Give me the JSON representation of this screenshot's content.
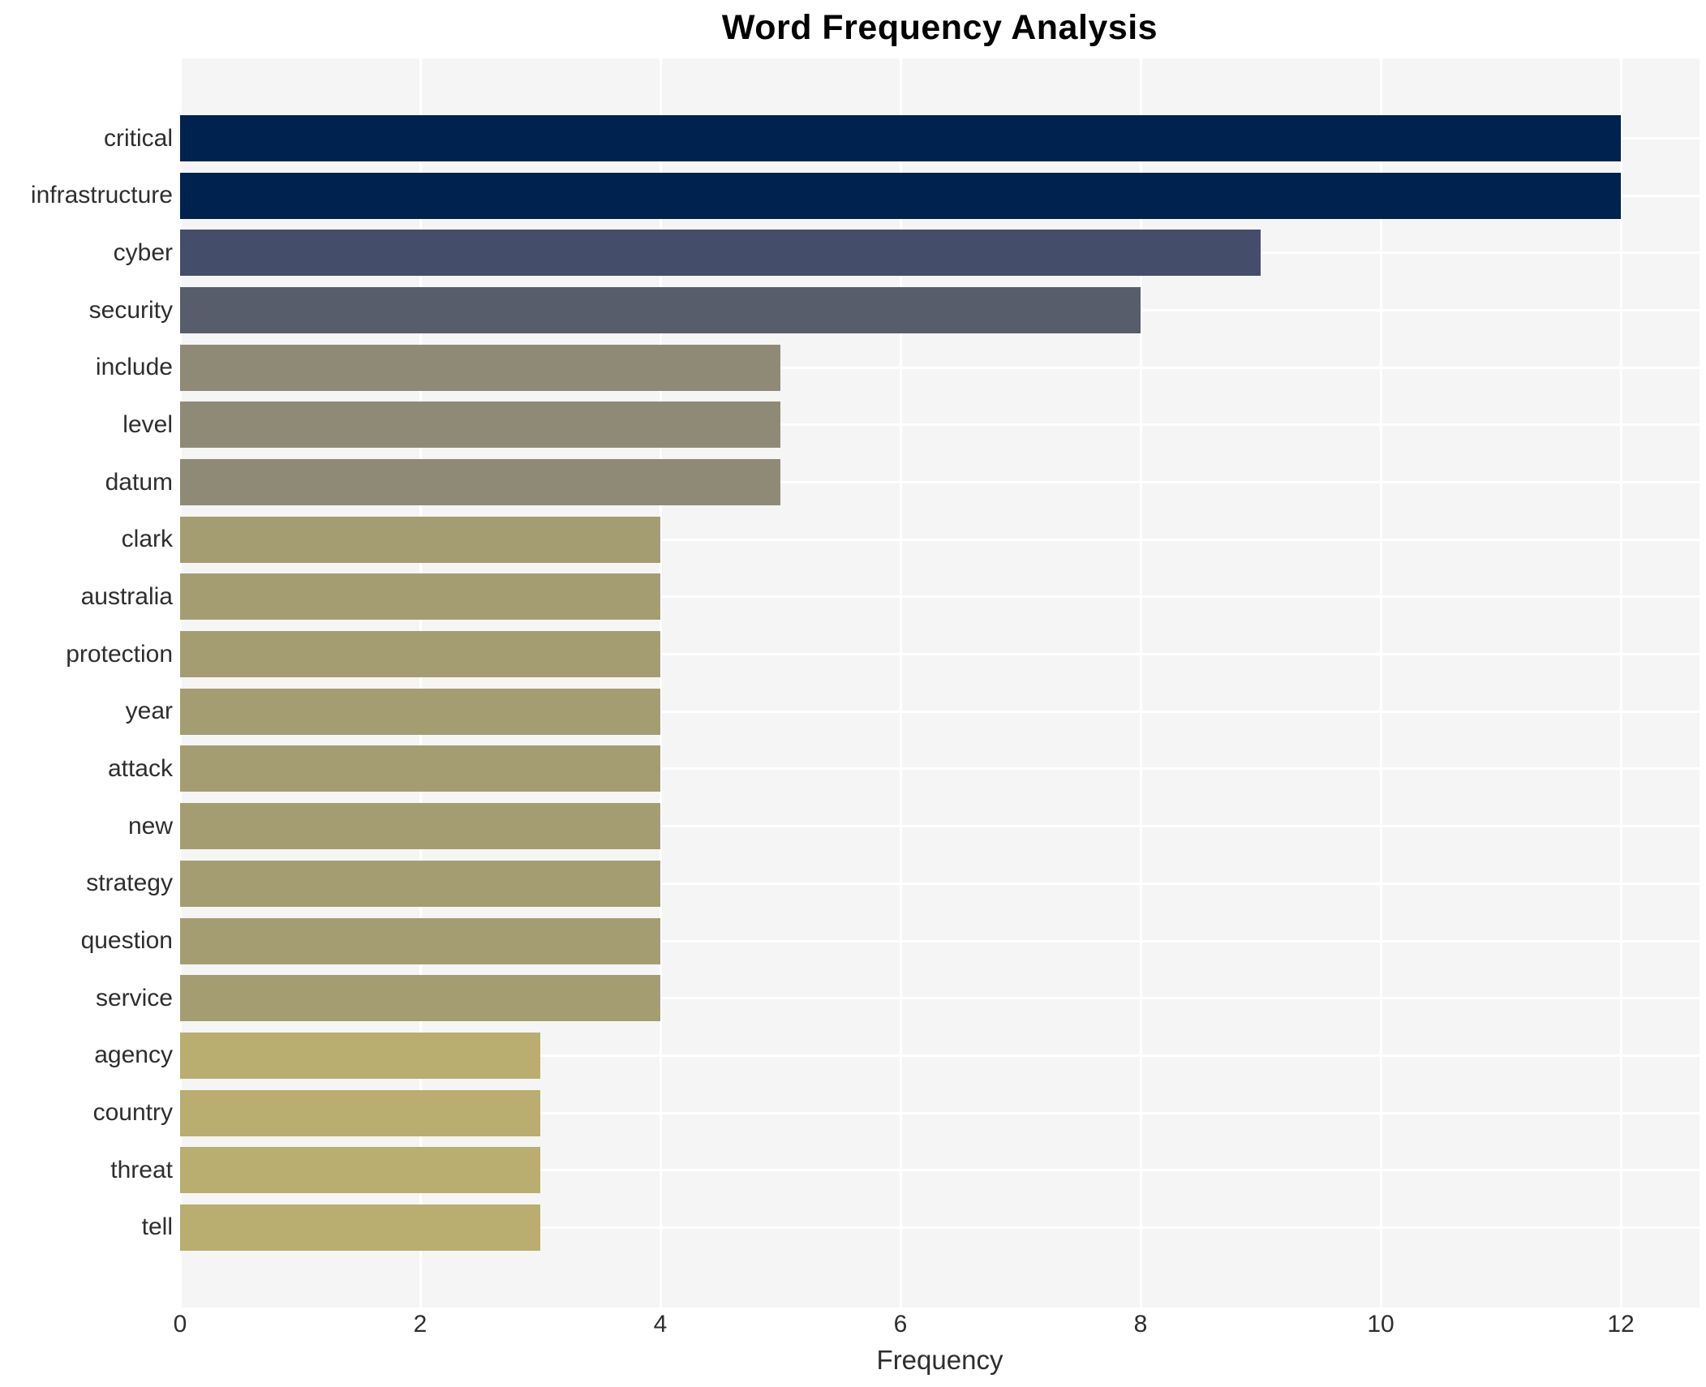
{
  "chart_data": {
    "type": "bar",
    "orientation": "horizontal",
    "title": "Word Frequency Analysis",
    "xlabel": "Frequency",
    "ylabel": "",
    "categories": [
      "critical",
      "infrastructure",
      "cyber",
      "security",
      "include",
      "level",
      "datum",
      "clark",
      "australia",
      "protection",
      "year",
      "attack",
      "new",
      "strategy",
      "question",
      "service",
      "agency",
      "country",
      "threat",
      "tell"
    ],
    "values": [
      12,
      12,
      9,
      8,
      5,
      5,
      5,
      4,
      4,
      4,
      4,
      4,
      4,
      4,
      4,
      4,
      3,
      3,
      3,
      3
    ],
    "bar_colors": [
      "#00224e",
      "#00224e",
      "#444e6b",
      "#575d6a",
      "#8f8a76",
      "#8f8a76",
      "#8f8a76",
      "#a49d71",
      "#a49d71",
      "#a49d71",
      "#a49d71",
      "#a49d71",
      "#a49d71",
      "#a49d71",
      "#a49d71",
      "#a49d71",
      "#b9ad6f",
      "#b9ad6f",
      "#b9ad6f",
      "#b9ad6f"
    ],
    "xticks": [
      0,
      2,
      4,
      6,
      8,
      10,
      12
    ],
    "xlim": [
      0,
      12.66
    ],
    "grid": true,
    "legend": false,
    "colors": {
      "plot_background": "#f5f5f6",
      "gridline": "#ffffff",
      "axis_text": "#2e2e2e",
      "title_text": "#000000"
    }
  }
}
